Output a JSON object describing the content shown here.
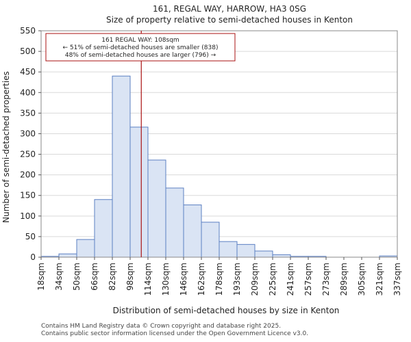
{
  "chart_data": {
    "type": "bar",
    "title": "161, REGAL WAY, HARROW, HA3 0SG",
    "subtitle": "Size of property relative to semi-detached houses in Kenton",
    "xlabel": "Distribution of semi-detached houses by size in Kenton",
    "ylabel": "Number of semi-detached properties",
    "ylim": [
      0,
      550
    ],
    "yticks": [
      0,
      50,
      100,
      150,
      200,
      250,
      300,
      350,
      400,
      450,
      500,
      550
    ],
    "bin_edges": [
      18,
      34,
      50,
      66,
      82,
      98,
      114,
      130,
      146,
      162,
      178,
      193,
      209,
      225,
      241,
      257,
      273,
      289,
      305,
      321,
      337
    ],
    "tick_labels": [
      "18sqm",
      "34sqm",
      "50sqm",
      "66sqm",
      "82sqm",
      "98sqm",
      "114sqm",
      "130sqm",
      "146sqm",
      "162sqm",
      "178sqm",
      "193sqm",
      "209sqm",
      "225sqm",
      "241sqm",
      "257sqm",
      "273sqm",
      "289sqm",
      "305sqm",
      "321sqm",
      "337sqm"
    ],
    "values": [
      2,
      8,
      43,
      140,
      440,
      316,
      236,
      168,
      127,
      85,
      38,
      31,
      15,
      6,
      2,
      2,
      0,
      0,
      0,
      3
    ],
    "bar_fill": "#dae4f4",
    "bar_edge": "#5b7fc2",
    "grid": true,
    "marker": {
      "value": 108,
      "color": "#aa1111",
      "lines": [
        "161 REGAL WAY: 108sqm",
        "← 51% of semi-detached houses are smaller (838)",
        "48% of semi-detached houses are larger (796) →"
      ]
    }
  },
  "footer": {
    "line1": "Contains HM Land Registry data © Crown copyright and database right 2025.",
    "line2": "Contains public sector information licensed under the Open Government Licence v3.0."
  }
}
